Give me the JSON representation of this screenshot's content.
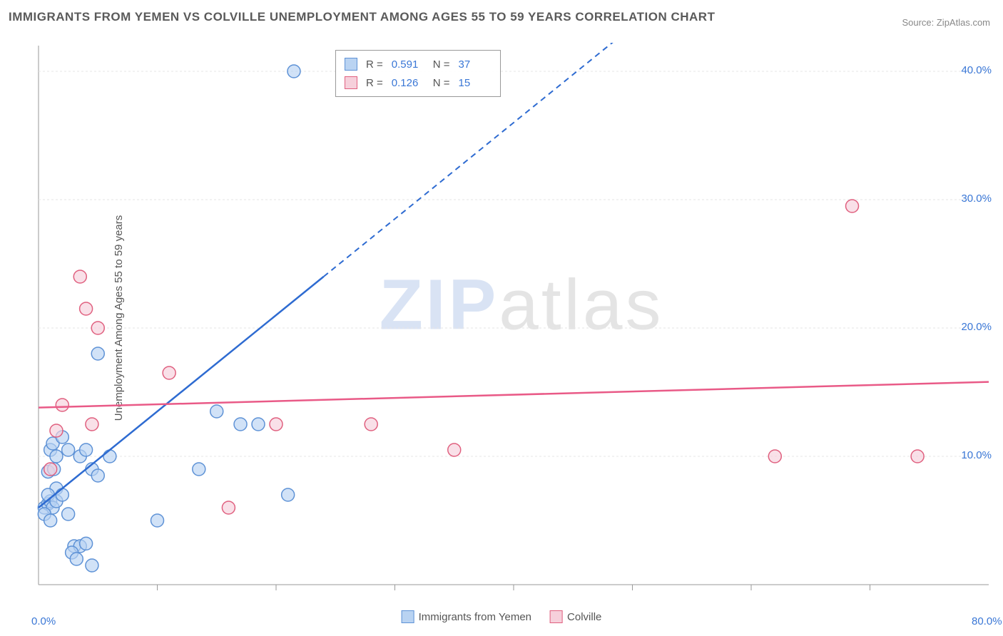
{
  "title": "IMMIGRANTS FROM YEMEN VS COLVILLE UNEMPLOYMENT AMONG AGES 55 TO 59 YEARS CORRELATION CHART",
  "source": "Source: ZipAtlas.com",
  "ylabel": "Unemployment Among Ages 55 to 59 years",
  "watermark": {
    "z": "ZIP",
    "rest": "atlas"
  },
  "chart": {
    "type": "scatter",
    "xlim": [
      0,
      80
    ],
    "ylim": [
      0,
      42
    ],
    "yticks": [
      {
        "v": 10,
        "label": "10.0%"
      },
      {
        "v": 20,
        "label": "20.0%"
      },
      {
        "v": 30,
        "label": "30.0%"
      },
      {
        "v": 40,
        "label": "40.0%"
      }
    ],
    "xticks": [
      {
        "v": 0,
        "label": "0.0%"
      },
      {
        "v": 80,
        "label": "80.0%"
      }
    ],
    "xinner_ticks": [
      10,
      20,
      30,
      40,
      50,
      60,
      70
    ],
    "grid_color": "#e6e6e6",
    "axis_color": "#999999",
    "background_color": "#ffffff",
    "marker_radius": 9,
    "marker_stroke_width": 1.5,
    "series": [
      {
        "name": "Immigrants from Yemen",
        "key": "yemen",
        "fill": "#b9d3f2",
        "stroke": "#5e92d6",
        "line_color": "#2e6bd1",
        "r": 0.591,
        "n": 37,
        "line": {
          "x1": 0,
          "y1": 6,
          "x2": 24,
          "y2": 24,
          "extend_to_x": 50,
          "extend_to_y": 43.5
        },
        "points": [
          [
            0.5,
            6.0
          ],
          [
            0.8,
            6.3
          ],
          [
            1.0,
            6.5
          ],
          [
            1.2,
            6.0
          ],
          [
            0.5,
            5.5
          ],
          [
            1.5,
            7.5
          ],
          [
            0.8,
            7.0
          ],
          [
            1.0,
            10.5
          ],
          [
            1.2,
            11.0
          ],
          [
            1.5,
            10.0
          ],
          [
            2.0,
            11.5
          ],
          [
            2.5,
            10.5
          ],
          [
            0.8,
            8.8
          ],
          [
            1.3,
            9.0
          ],
          [
            3.5,
            10.0
          ],
          [
            4.0,
            10.5
          ],
          [
            6.0,
            10.0
          ],
          [
            4.5,
            9.0
          ],
          [
            5.0,
            8.5
          ],
          [
            3.0,
            3.0
          ],
          [
            3.5,
            3.0
          ],
          [
            2.8,
            2.5
          ],
          [
            4.0,
            3.2
          ],
          [
            3.2,
            2.0
          ],
          [
            4.5,
            1.5
          ],
          [
            2.5,
            5.5
          ],
          [
            10.0,
            5.0
          ],
          [
            13.5,
            9.0
          ],
          [
            15.0,
            13.5
          ],
          [
            17.0,
            12.5
          ],
          [
            18.5,
            12.5
          ],
          [
            21.0,
            7.0
          ],
          [
            5.0,
            18.0
          ],
          [
            21.5,
            40.0
          ],
          [
            1.0,
            5.0
          ],
          [
            1.5,
            6.5
          ],
          [
            2.0,
            7.0
          ]
        ]
      },
      {
        "name": "Colville",
        "key": "colville",
        "fill": "#f6d0db",
        "stroke": "#e0607f",
        "line_color": "#e95a87",
        "r": 0.126,
        "n": 15,
        "line": {
          "x1": 0,
          "y1": 13.8,
          "x2": 80,
          "y2": 15.8
        },
        "points": [
          [
            2.0,
            14.0
          ],
          [
            3.5,
            24.0
          ],
          [
            4.0,
            21.5
          ],
          [
            5.0,
            20.0
          ],
          [
            1.5,
            12.0
          ],
          [
            1.0,
            9.0
          ],
          [
            4.5,
            12.5
          ],
          [
            11.0,
            16.5
          ],
          [
            16.0,
            6.0
          ],
          [
            20.0,
            12.5
          ],
          [
            28.0,
            12.5
          ],
          [
            35.0,
            10.5
          ],
          [
            62.0,
            10.0
          ],
          [
            74.0,
            10.0
          ],
          [
            68.5,
            29.5
          ]
        ]
      }
    ]
  },
  "legend": {
    "series1_label": "Immigrants from Yemen",
    "series2_label": "Colville"
  }
}
